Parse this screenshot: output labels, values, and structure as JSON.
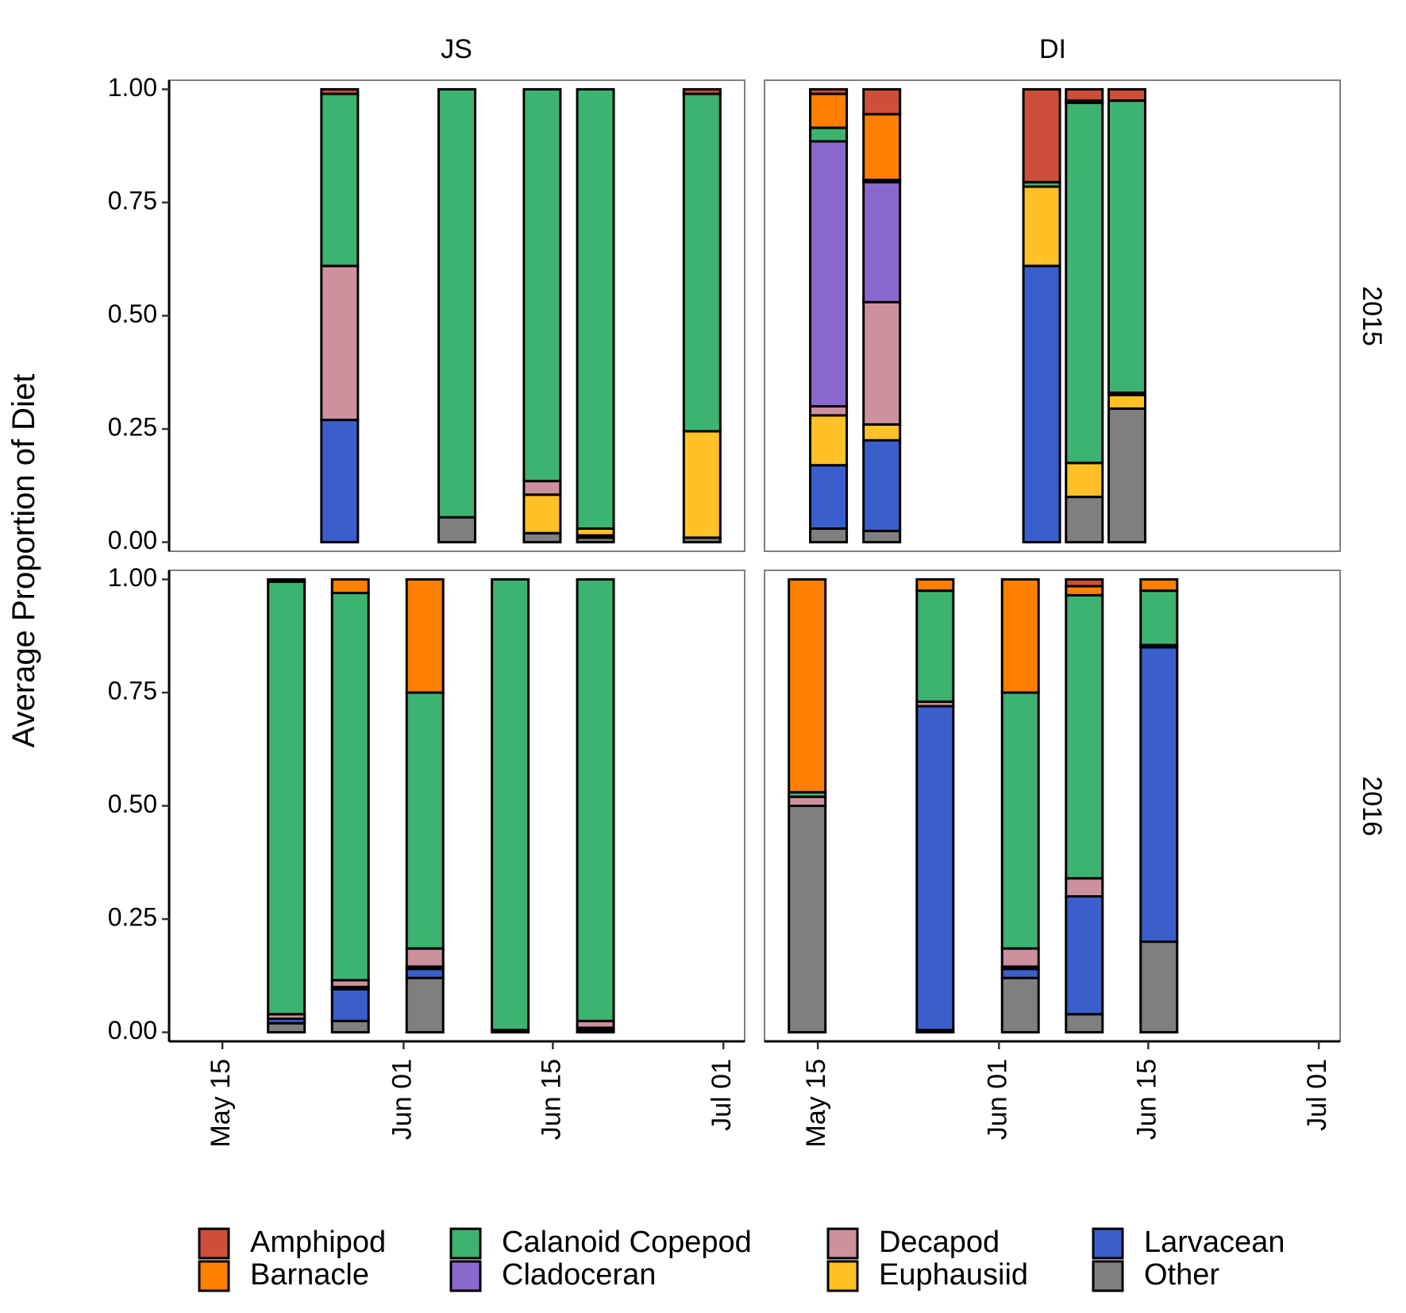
{
  "y_label": "Average Proportion of Diet",
  "column_labels": [
    "JS",
    "DI"
  ],
  "row_labels": [
    "2015",
    "2016"
  ],
  "chart_data": [
    {
      "type": "bar",
      "stacked": true,
      "x": [
        "May 26",
        "Jun 06",
        "Jun 14",
        "Jun 19",
        "Jun 29"
      ],
      "xlim": [
        "May 10",
        "Jul 03"
      ],
      "ylim": [
        -0.02,
        1.02
      ],
      "yticks": [
        {
          "value": 0,
          "label": "0.00"
        },
        {
          "value": 0.25,
          "label": "0.25"
        },
        {
          "value": 0.5,
          "label": "0.50"
        },
        {
          "value": 0.75,
          "label": "0.75"
        },
        {
          "value": 1,
          "label": "1.00"
        }
      ],
      "series": [
        {
          "name": "Amphipod",
          "color": "#cd4f39",
          "values": [
            0.01,
            0,
            0,
            0,
            0.01
          ]
        },
        {
          "name": "Barnacle",
          "color": "#ff7f00",
          "values": [
            0,
            0,
            0,
            0,
            0
          ]
        },
        {
          "name": "Calanoid Copepod",
          "color": "#3cb371",
          "values": [
            0.38,
            0.945,
            0.865,
            0.97,
            0.745
          ]
        },
        {
          "name": "Cladoceran",
          "color": "#8b68cd",
          "values": [
            0,
            0,
            0,
            0,
            0
          ]
        },
        {
          "name": "Decapod",
          "color": "#cd919e",
          "values": [
            0.34,
            0,
            0.03,
            0,
            0
          ]
        },
        {
          "name": "Euphausiid",
          "color": "#ffc125",
          "values": [
            0,
            0,
            0.085,
            0.015,
            0.235
          ]
        },
        {
          "name": "Larvacean",
          "color": "#3a5fcd",
          "values": [
            0.27,
            0,
            0,
            0.005,
            0
          ]
        },
        {
          "name": "Other",
          "color": "#7f7f7f",
          "values": [
            0,
            0.055,
            0.02,
            0.01,
            0.01
          ]
        }
      ]
    },
    {
      "type": "bar",
      "stacked": true,
      "x": [
        "May 16",
        "May 21",
        "Jun 05",
        "Jun 09",
        "Jun 13"
      ],
      "xlim": [
        "May 10",
        "Jul 03"
      ],
      "ylim": [
        -0.02,
        1.02
      ],
      "series": [
        {
          "name": "Amphipod",
          "color": "#cd4f39",
          "values": [
            0.01,
            0.055,
            0.205,
            0.025,
            0.025
          ]
        },
        {
          "name": "Barnacle",
          "color": "#ff7f00",
          "values": [
            0.075,
            0.145,
            0,
            0.005,
            0
          ]
        },
        {
          "name": "Calanoid Copepod",
          "color": "#3cb371",
          "values": [
            0.03,
            0.005,
            0.01,
            0.795,
            0.645
          ]
        },
        {
          "name": "Cladoceran",
          "color": "#8b68cd",
          "values": [
            0.585,
            0.265,
            0,
            0,
            0
          ]
        },
        {
          "name": "Decapod",
          "color": "#cd919e",
          "values": [
            0.02,
            0.27,
            0,
            0,
            0.005
          ]
        },
        {
          "name": "Euphausiid",
          "color": "#ffc125",
          "values": [
            0.11,
            0.035,
            0.175,
            0.075,
            0.03
          ]
        },
        {
          "name": "Larvacean",
          "color": "#3a5fcd",
          "values": [
            0.14,
            0.2,
            0.61,
            0,
            0
          ]
        },
        {
          "name": "Other",
          "color": "#7f7f7f",
          "values": [
            0.03,
            0.025,
            0,
            0.1,
            0.295
          ]
        }
      ]
    },
    {
      "type": "bar",
      "stacked": true,
      "x": [
        "May 21",
        "May 27",
        "Jun 03",
        "Jun 11",
        "Jun 19"
      ],
      "xlim": [
        "May 10",
        "Jul 03"
      ],
      "xticks": [
        "May 15",
        "Jun 01",
        "Jun 15",
        "Jul 01"
      ],
      "ylim": [
        -0.02,
        1.02
      ],
      "yticks": [
        {
          "value": 0,
          "label": "0.00"
        },
        {
          "value": 0.25,
          "label": "0.25"
        },
        {
          "value": 0.5,
          "label": "0.50"
        },
        {
          "value": 0.75,
          "label": "0.75"
        },
        {
          "value": 1,
          "label": "1.00"
        }
      ],
      "series": [
        {
          "name": "Amphipod",
          "color": "#cd4f39",
          "values": [
            0.005,
            0,
            0,
            0,
            0
          ]
        },
        {
          "name": "Barnacle",
          "color": "#ff7f00",
          "values": [
            0,
            0.03,
            0.25,
            0,
            0
          ]
        },
        {
          "name": "Calanoid Copepod",
          "color": "#3cb371",
          "values": [
            0.955,
            0.855,
            0.565,
            0.995,
            0.975
          ]
        },
        {
          "name": "Cladoceran",
          "color": "#8b68cd",
          "values": [
            0,
            0,
            0,
            0,
            0
          ]
        },
        {
          "name": "Decapod",
          "color": "#cd919e",
          "values": [
            0.01,
            0.015,
            0.04,
            0,
            0.015
          ]
        },
        {
          "name": "Euphausiid",
          "color": "#ffc125",
          "values": [
            0,
            0.005,
            0.005,
            0,
            0.005
          ]
        },
        {
          "name": "Larvacean",
          "color": "#3a5fcd",
          "values": [
            0.01,
            0.07,
            0.02,
            0,
            0
          ]
        },
        {
          "name": "Other",
          "color": "#7f7f7f",
          "values": [
            0.02,
            0.025,
            0.12,
            0.005,
            0.005
          ]
        }
      ]
    },
    {
      "type": "bar",
      "stacked": true,
      "x": [
        "May 14",
        "May 26",
        "Jun 03",
        "Jun 09",
        "Jun 16"
      ],
      "xlim": [
        "May 10",
        "Jul 03"
      ],
      "xticks": [
        "May 15",
        "Jun 01",
        "Jun 15",
        "Jul 01"
      ],
      "ylim": [
        -0.02,
        1.02
      ],
      "series": [
        {
          "name": "Amphipod",
          "color": "#cd4f39",
          "values": [
            0,
            0,
            0,
            0.015,
            0
          ]
        },
        {
          "name": "Barnacle",
          "color": "#ff7f00",
          "values": [
            0.47,
            0.025,
            0.25,
            0.02,
            0.025
          ]
        },
        {
          "name": "Calanoid Copepod",
          "color": "#3cb371",
          "values": [
            0.01,
            0.245,
            0.565,
            0.625,
            0.12
          ]
        },
        {
          "name": "Cladoceran",
          "color": "#8b68cd",
          "values": [
            0,
            0,
            0,
            0,
            0
          ]
        },
        {
          "name": "Decapod",
          "color": "#cd919e",
          "values": [
            0.02,
            0.01,
            0.04,
            0.04,
            0
          ]
        },
        {
          "name": "Euphausiid",
          "color": "#ffc125",
          "values": [
            0,
            0,
            0.005,
            0,
            0.005
          ]
        },
        {
          "name": "Larvacean",
          "color": "#3a5fcd",
          "values": [
            0,
            0.715,
            0.02,
            0.26,
            0.65
          ]
        },
        {
          "name": "Other",
          "color": "#7f7f7f",
          "values": [
            0.5,
            0.005,
            0.12,
            0.04,
            0.2
          ]
        }
      ]
    }
  ]
}
